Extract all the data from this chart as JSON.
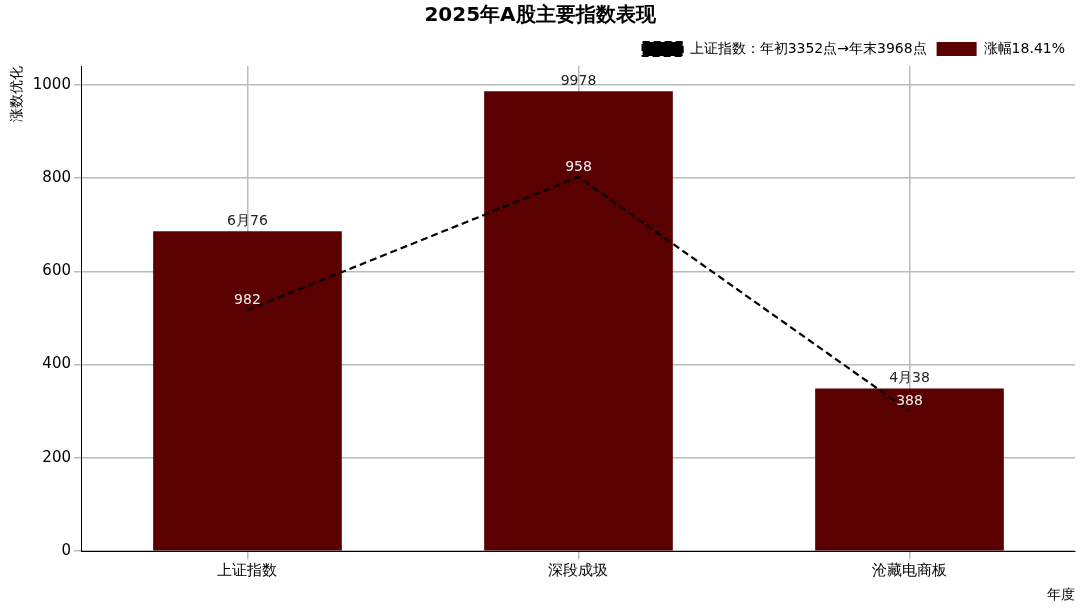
{
  "chart_data": {
    "type": "bar",
    "title": "2025年A股主要指数表现",
    "xlabel": "年度",
    "ylabel": "涨数优化",
    "categories": [
      "上证指数",
      "深段成圾",
      "沧藏电商板"
    ],
    "series": [
      {
        "type": "line",
        "name": "上证指数：年初3352点→年末3968点",
        "color": "#000000",
        "values": [
          517,
          802,
          300
        ],
        "line_style": "dashed",
        "marker": "none"
      },
      {
        "name": "涨幅18.41%",
        "color": "#5a0000",
        "values": [
          686,
          986,
          349
        ]
      }
    ],
    "annotations": [
      {
        "text": "6月76",
        "x": "上证指数",
        "y": 686
      },
      {
        "text": "9978",
        "x": "深段成圾",
        "y": 986
      },
      {
        "text": "4月38",
        "x": "沧藏电商板",
        "y": 349
      },
      {
        "text": "982",
        "x": "上证指数",
        "y": 517
      },
      {
        "text": "958",
        "x": "深段成圾",
        "y": 802
      },
      {
        "text": "388",
        "x": "沧藏电商板",
        "y": 300
      }
    ],
    "ylim": [
      0,
      1040
    ],
    "yticks": [
      0,
      200,
      400,
      600,
      800,
      1000
    ],
    "grid": true,
    "legend": "top right"
  }
}
